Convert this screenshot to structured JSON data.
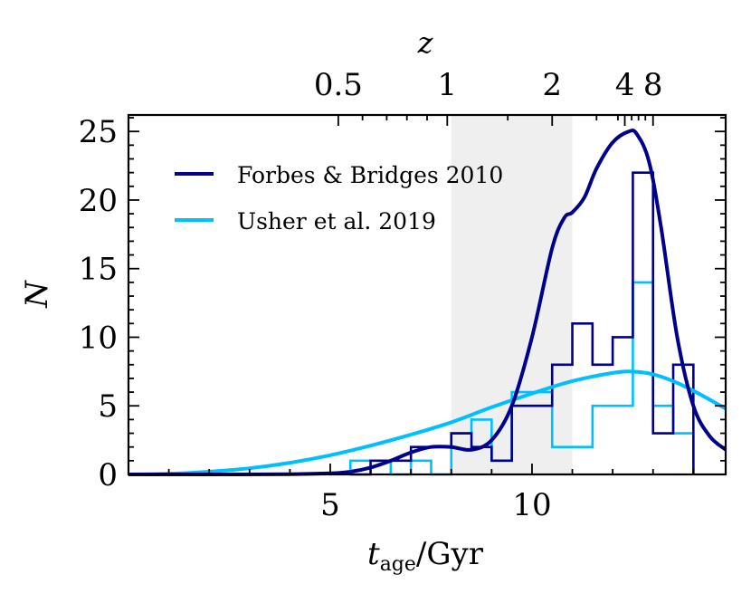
{
  "chart_data": {
    "type": "histogram",
    "title": "",
    "xlabel": {
      "main": "t",
      "sub": "age",
      "rest": "/Gyr"
    },
    "ylabel": "N",
    "top_axis_label": "z",
    "xlim": [
      0,
      14.8
    ],
    "ylim": [
      0,
      26.2
    ],
    "x_ticks": [
      5,
      10
    ],
    "x_tick_labels": [
      "5",
      "10"
    ],
    "y_ticks": [
      0,
      5,
      10,
      15,
      20,
      25
    ],
    "y_tick_labels": [
      "0",
      "5",
      "10",
      "15",
      "20",
      "25"
    ],
    "top_ticks": [
      {
        "z": "0.5",
        "age": 5.2
      },
      {
        "z": "1",
        "age": 7.9
      },
      {
        "z": "2",
        "age": 10.5
      },
      {
        "z": "4",
        "age": 12.3
      },
      {
        "z": "8",
        "age": 13.0
      }
    ],
    "shaded_region": {
      "x0": 8.0,
      "x1": 11.0,
      "color": "#efefef"
    },
    "legend": {
      "position": "upper-left"
    },
    "bin_edges": [
      5.5,
      6.0,
      6.5,
      7.0,
      7.5,
      8.0,
      8.5,
      9.0,
      9.5,
      10.0,
      10.5,
      11.0,
      11.5,
      12.0,
      12.5,
      13.0,
      13.5,
      14.0
    ],
    "series": [
      {
        "name": "Forbes & Bridges 2010",
        "color": "#00008b",
        "hist_counts": [
          0,
          1,
          1,
          2,
          2,
          3,
          2,
          1,
          5,
          5,
          8,
          11,
          8,
          10,
          22,
          3,
          8
        ],
        "kde_x": [
          0,
          2,
          4,
          5,
          5.5,
          6,
          6.5,
          7,
          7.5,
          8,
          8.5,
          9,
          9.5,
          10,
          10.5,
          10.8,
          11,
          11.3,
          11.6,
          12,
          12.4,
          12.6,
          12.9,
          13.2,
          13.6,
          14,
          14.4,
          14.8
        ],
        "kde_y": [
          0,
          0,
          0.02,
          0.08,
          0.2,
          0.5,
          1.0,
          1.6,
          2.0,
          2.0,
          1.8,
          2.5,
          5.0,
          10.0,
          16.5,
          18.7,
          19.1,
          20.2,
          22.3,
          24.2,
          25.0,
          24.8,
          22.8,
          18.0,
          10.0,
          5.0,
          2.8,
          1.8
        ]
      },
      {
        "name": "Usher et al. 2019",
        "color": "#00bfff",
        "hist_counts": [
          1,
          1,
          0,
          1,
          0,
          3,
          4,
          1,
          6,
          6,
          2,
          2,
          5,
          5,
          14,
          5,
          3
        ],
        "kde_x": [
          0,
          1,
          2,
          3,
          4,
          5,
          6,
          7,
          8,
          9,
          10,
          11,
          12,
          12.5,
          13,
          13.5,
          14,
          14.8
        ],
        "kde_y": [
          0,
          0.05,
          0.2,
          0.45,
          0.85,
          1.4,
          2.1,
          2.9,
          3.8,
          4.9,
          5.9,
          6.8,
          7.4,
          7.5,
          7.3,
          6.8,
          6.1,
          4.8
        ]
      }
    ]
  }
}
